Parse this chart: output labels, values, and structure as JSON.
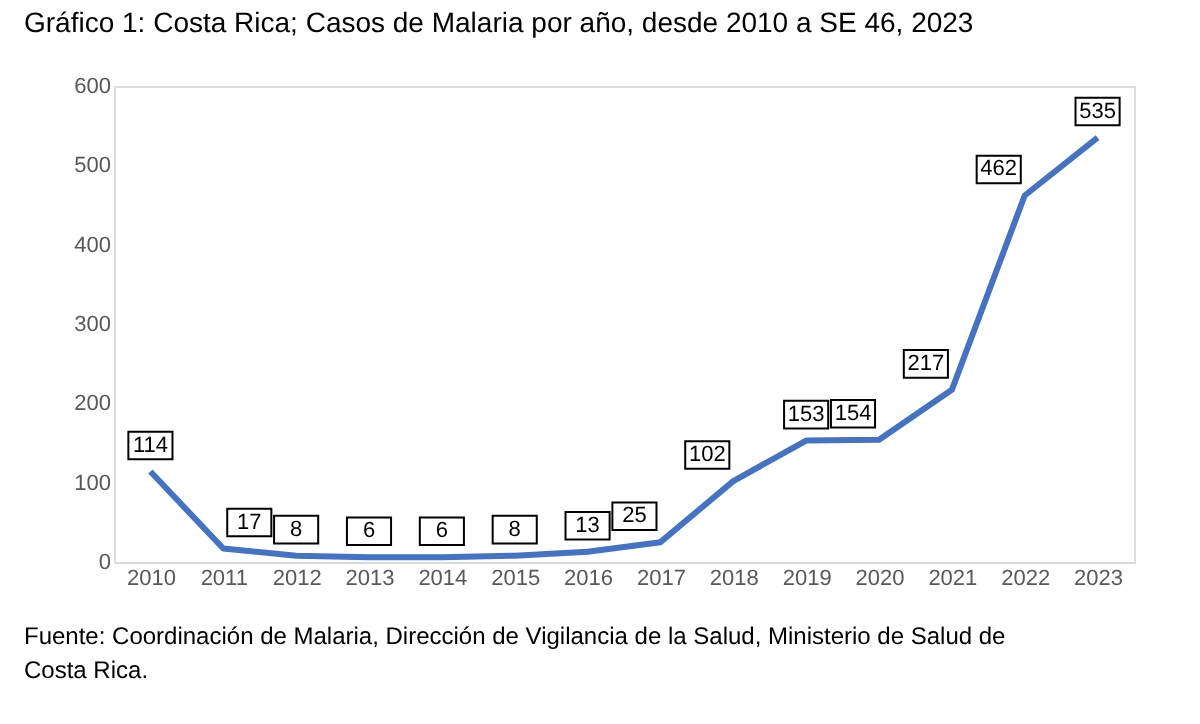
{
  "chart_data": {
    "type": "line",
    "title": "Gráfico 1: Costa Rica; Casos de Malaria por año, desde 2010 a SE 46, 2023",
    "categories": [
      "2010",
      "2011",
      "2012",
      "2013",
      "2014",
      "2015",
      "2016",
      "2017",
      "2018",
      "2019",
      "2020",
      "2021",
      "2022",
      "2023"
    ],
    "series": [
      {
        "color": "#4472c4",
        "values": [
          114,
          17,
          8,
          6,
          6,
          8,
          13,
          25,
          102,
          153,
          154,
          217,
          462,
          535
        ]
      }
    ],
    "ylim": [
      0,
      600
    ],
    "yticks": [
      0,
      100,
      200,
      300,
      400,
      500,
      600
    ],
    "grid": false,
    "marker": "none",
    "line_style": "solid",
    "data_labels": true,
    "annotations": [
      "Fuente: Coordinación de Malaria, Dirección de Vigilancia de la Salud, Ministerio de Salud de Costa Rica."
    ]
  }
}
